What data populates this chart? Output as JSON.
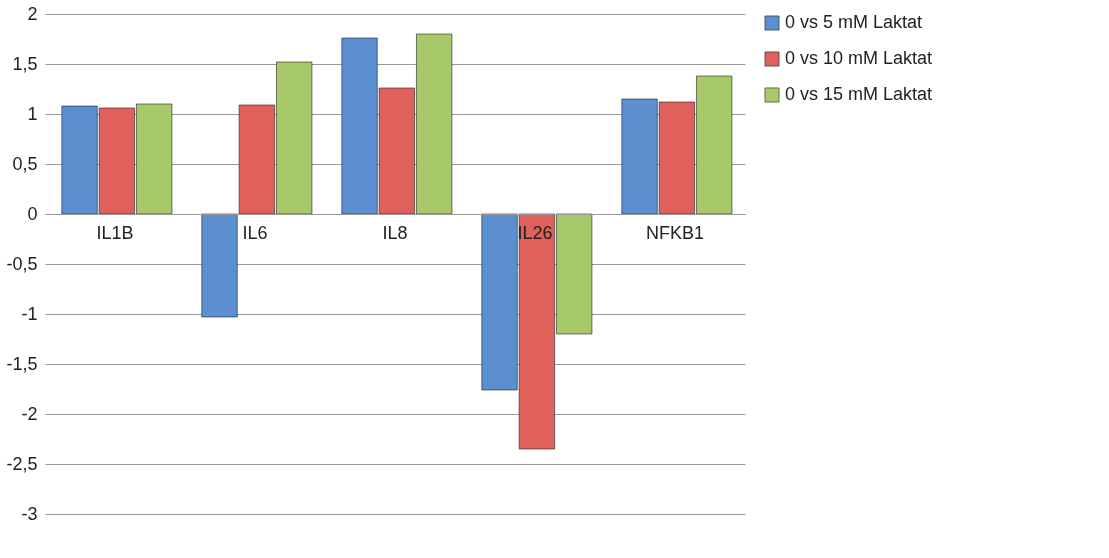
{
  "chart_data": {
    "type": "bar",
    "categories": [
      "IL1B",
      "IL6",
      "IL8",
      "IL26",
      "NFKB1"
    ],
    "series": [
      {
        "name": "0 vs 5 mM Laktat",
        "color": "#5b8fd0",
        "values": [
          1.08,
          -1.03,
          1.76,
          -1.76,
          1.15
        ]
      },
      {
        "name": "0 vs 10 mM Laktat",
        "color": "#e0605c",
        "values": [
          1.06,
          1.09,
          1.26,
          -2.35,
          1.12
        ]
      },
      {
        "name": "0 vs 15 mM Laktat",
        "color": "#a8c96a",
        "values": [
          1.1,
          1.52,
          1.8,
          -1.2,
          1.38
        ]
      }
    ],
    "ylim": [
      -3,
      2
    ],
    "yticks": [
      {
        "value": -3,
        "label": "-3"
      },
      {
        "value": -2.5,
        "label": "-2,5"
      },
      {
        "value": -2,
        "label": "-2"
      },
      {
        "value": -1.5,
        "label": "-1,5"
      },
      {
        "value": -1,
        "label": "-1"
      },
      {
        "value": -0.5,
        "label": "-0,5"
      },
      {
        "value": 0,
        "label": "0"
      },
      {
        "value": 0.5,
        "label": "0,5"
      },
      {
        "value": 1,
        "label": "1"
      },
      {
        "value": 1.5,
        "label": "1,5"
      },
      {
        "value": 2,
        "label": "2"
      }
    ],
    "grid": "y",
    "legend": "right"
  }
}
